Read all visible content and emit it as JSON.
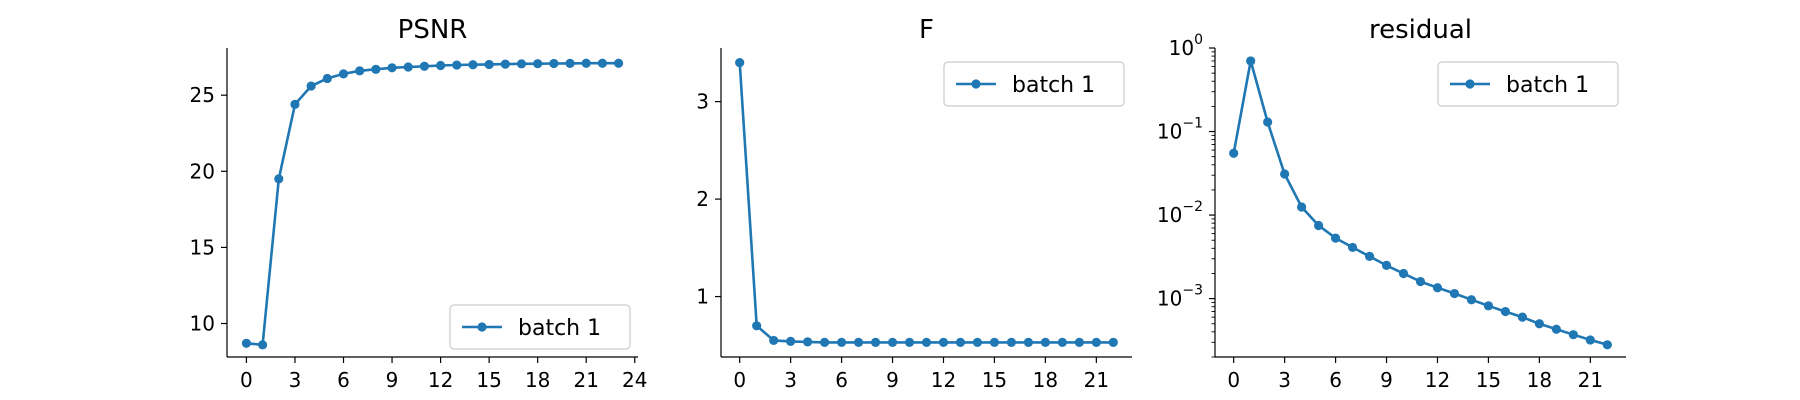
{
  "figure": {
    "background": "#ffffff"
  },
  "chart_data": [
    {
      "type": "line",
      "title": "PSNR",
      "xlabel": "",
      "ylabel": "",
      "yscale": "linear",
      "xlim": [
        -1.2,
        24.2
      ],
      "ylim": [
        7.8,
        28.1
      ],
      "xticks": [
        0,
        3,
        6,
        9,
        12,
        15,
        18,
        21,
        24
      ],
      "xtick_labels": [
        "0",
        "3",
        "6",
        "9",
        "12",
        "15",
        "18",
        "21",
        "24"
      ],
      "yticks": [
        10,
        15,
        20,
        25
      ],
      "ytick_labels": [
        "10",
        "15",
        "20",
        "25"
      ],
      "legend": {
        "position": "lower-right"
      },
      "grid": false,
      "series": [
        {
          "name": "batch 1",
          "color": "#1f77b4",
          "marker": "circle",
          "x": [
            0,
            1,
            2,
            3,
            4,
            5,
            6,
            7,
            8,
            9,
            10,
            11,
            12,
            13,
            14,
            15,
            16,
            17,
            18,
            19,
            20,
            21,
            22,
            23
          ],
          "y": [
            8.7,
            8.6,
            19.5,
            24.4,
            25.6,
            26.1,
            26.4,
            26.6,
            26.7,
            26.8,
            26.85,
            26.9,
            26.95,
            26.98,
            27.0,
            27.02,
            27.04,
            27.06,
            27.07,
            27.08,
            27.09,
            27.1,
            27.1,
            27.1
          ]
        }
      ]
    },
    {
      "type": "line",
      "title": "F",
      "xlabel": "",
      "ylabel": "",
      "yscale": "linear",
      "xlim": [
        -1.1,
        23.1
      ],
      "ylim": [
        0.38,
        3.55
      ],
      "xticks": [
        0,
        3,
        6,
        9,
        12,
        15,
        18,
        21
      ],
      "xtick_labels": [
        "0",
        "3",
        "6",
        "9",
        "12",
        "15",
        "18",
        "21"
      ],
      "yticks": [
        1,
        2,
        3
      ],
      "ytick_labels": [
        "1",
        "2",
        "3"
      ],
      "legend": {
        "position": "top-right"
      },
      "grid": false,
      "series": [
        {
          "name": "batch 1",
          "color": "#1f77b4",
          "marker": "circle",
          "x": [
            0,
            1,
            2,
            3,
            4,
            5,
            6,
            7,
            8,
            9,
            10,
            11,
            12,
            13,
            14,
            15,
            16,
            17,
            18,
            19,
            20,
            21,
            22
          ],
          "y": [
            3.4,
            0.7,
            0.55,
            0.54,
            0.535,
            0.53,
            0.53,
            0.53,
            0.53,
            0.53,
            0.53,
            0.53,
            0.53,
            0.53,
            0.53,
            0.53,
            0.53,
            0.53,
            0.53,
            0.53,
            0.53,
            0.53,
            0.53
          ]
        }
      ]
    },
    {
      "type": "line",
      "title": "residual",
      "xlabel": "",
      "ylabel": "",
      "yscale": "log",
      "xlim": [
        -1.1,
        23.1
      ],
      "ylim": [
        0.0002,
        1.0
      ],
      "xticks": [
        0,
        3,
        6,
        9,
        12,
        15,
        18,
        21
      ],
      "xtick_labels": [
        "0",
        "3",
        "6",
        "9",
        "12",
        "15",
        "18",
        "21"
      ],
      "yticks": [
        0.001,
        0.01,
        0.1,
        1
      ],
      "ytick_labels": [
        {
          "base": "10",
          "exp": "−3"
        },
        {
          "base": "10",
          "exp": "−2"
        },
        {
          "base": "10",
          "exp": "−1"
        },
        {
          "base": "10",
          "exp": "0"
        }
      ],
      "legend": {
        "position": "top-right"
      },
      "grid": false,
      "series": [
        {
          "name": "batch 1",
          "color": "#1f77b4",
          "marker": "circle",
          "x": [
            0,
            1,
            2,
            3,
            4,
            5,
            6,
            7,
            8,
            9,
            10,
            11,
            12,
            13,
            14,
            15,
            16,
            17,
            18,
            19,
            20,
            21,
            22
          ],
          "y": [
            0.055,
            0.7,
            0.13,
            0.031,
            0.0125,
            0.0075,
            0.0053,
            0.0041,
            0.0032,
            0.0025,
            0.002,
            0.0016,
            0.00135,
            0.00115,
            0.00097,
            0.00082,
            0.0007,
            0.0006,
            0.0005,
            0.00043,
            0.00037,
            0.00032,
            0.00028
          ]
        }
      ]
    }
  ]
}
